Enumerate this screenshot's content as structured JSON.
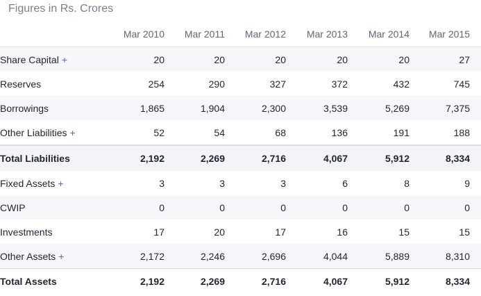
{
  "caption": "Figures in Rs. Crores",
  "columns": [
    "Mar 2010",
    "Mar 2011",
    "Mar 2012",
    "Mar 2013",
    "Mar 2014",
    "Mar 2015"
  ],
  "expand_symbol": "+",
  "rows": [
    {
      "label": "Share Capital",
      "expandable": true,
      "values": [
        "20",
        "20",
        "20",
        "20",
        "20",
        "27"
      ]
    },
    {
      "label": "Reserves",
      "expandable": false,
      "values": [
        "254",
        "290",
        "327",
        "372",
        "432",
        "745"
      ]
    },
    {
      "label": "Borrowings",
      "expandable": false,
      "values": [
        "1,865",
        "1,904",
        "2,300",
        "3,539",
        "5,269",
        "7,375"
      ]
    },
    {
      "label": "Other Liabilities",
      "expandable": true,
      "values": [
        "52",
        "54",
        "68",
        "136",
        "191",
        "188"
      ]
    },
    {
      "label": "Total Liabilities",
      "expandable": false,
      "values": [
        "2,192",
        "2,269",
        "2,716",
        "4,067",
        "5,912",
        "8,334"
      ]
    },
    {
      "label": "Fixed Assets",
      "expandable": true,
      "values": [
        "3",
        "3",
        "3",
        "6",
        "8",
        "9"
      ]
    },
    {
      "label": "CWIP",
      "expandable": false,
      "values": [
        "0",
        "0",
        "0",
        "0",
        "0",
        "0"
      ]
    },
    {
      "label": "Investments",
      "expandable": false,
      "values": [
        "17",
        "20",
        "17",
        "16",
        "15",
        "15"
      ]
    },
    {
      "label": "Other Assets",
      "expandable": true,
      "values": [
        "2,172",
        "2,246",
        "2,696",
        "4,044",
        "5,889",
        "8,310"
      ]
    },
    {
      "label": "Total Assets",
      "expandable": false,
      "values": [
        "2,192",
        "2,269",
        "2,716",
        "4,067",
        "5,912",
        "8,334"
      ]
    }
  ],
  "colors": {
    "accent": "#6263c6",
    "stripe": "#f6f7fb",
    "caption": "#7a7f8e"
  }
}
